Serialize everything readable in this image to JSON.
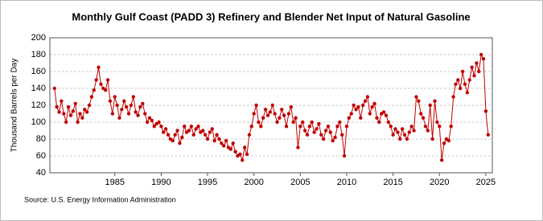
{
  "chart_data": {
    "type": "line",
    "title": "Monthly Gulf Coast (PADD 3) Refinery and Blender Net Input of Natural Gasoline",
    "y_label": "Thousand Barrels per Day",
    "source": "Source: U.S. Energy Information Administration",
    "xlim": [
      1978,
      2025.7
    ],
    "ylim": [
      40,
      200
    ],
    "xticks": [
      1985,
      1990,
      1995,
      2000,
      2005,
      2010,
      2015,
      2020,
      2025
    ],
    "yticks": [
      40,
      60,
      80,
      100,
      120,
      140,
      160,
      180,
      200
    ],
    "grid": true,
    "series": [
      {
        "color": "#c00000",
        "x": [
          1978.5,
          1978.75,
          1979,
          1979.25,
          1979.5,
          1979.75,
          1980,
          1980.25,
          1980.5,
          1980.75,
          1981,
          1981.25,
          1981.5,
          1981.75,
          1982,
          1982.25,
          1982.5,
          1982.75,
          1983,
          1983.25,
          1983.5,
          1983.75,
          1984,
          1984.25,
          1984.5,
          1984.75,
          1985,
          1985.25,
          1985.5,
          1985.75,
          1986,
          1986.25,
          1986.5,
          1986.75,
          1987,
          1987.25,
          1987.5,
          1987.75,
          1988,
          1988.25,
          1988.5,
          1988.75,
          1989,
          1989.25,
          1989.5,
          1989.75,
          1990,
          1990.25,
          1990.5,
          1990.75,
          1991,
          1991.25,
          1991.5,
          1991.75,
          1992,
          1992.25,
          1992.5,
          1992.75,
          1993,
          1993.25,
          1993.5,
          1993.75,
          1994,
          1994.25,
          1994.5,
          1994.75,
          1995,
          1995.25,
          1995.5,
          1995.75,
          1996,
          1996.25,
          1996.5,
          1996.75,
          1997,
          1997.25,
          1997.5,
          1997.75,
          1998,
          1998.25,
          1998.5,
          1998.75,
          1999,
          1999.25,
          1999.5,
          1999.75,
          2000,
          2000.25,
          2000.5,
          2000.75,
          2001,
          2001.25,
          2001.5,
          2001.75,
          2002,
          2002.25,
          2002.5,
          2002.75,
          2003,
          2003.25,
          2003.5,
          2003.75,
          2004,
          2004.25,
          2004.5,
          2004.75,
          2005,
          2005.25,
          2005.5,
          2005.75,
          2006,
          2006.25,
          2006.5,
          2006.75,
          2007,
          2007.25,
          2007.5,
          2007.75,
          2008,
          2008.25,
          2008.5,
          2008.75,
          2009,
          2009.25,
          2009.5,
          2009.75,
          2010,
          2010.25,
          2010.5,
          2010.75,
          2011,
          2011.25,
          2011.5,
          2011.75,
          2012,
          2012.25,
          2012.5,
          2012.75,
          2013,
          2013.25,
          2013.5,
          2013.75,
          2014,
          2014.25,
          2014.5,
          2014.75,
          2015,
          2015.25,
          2015.5,
          2015.75,
          2016,
          2016.25,
          2016.5,
          2016.75,
          2017,
          2017.25,
          2017.5,
          2017.75,
          2018,
          2018.25,
          2018.5,
          2018.75,
          2019,
          2019.25,
          2019.5,
          2019.75,
          2020,
          2020.25,
          2020.5,
          2020.75,
          2021,
          2021.25,
          2021.5,
          2021.75,
          2022,
          2022.25,
          2022.5,
          2022.75,
          2023,
          2023.25,
          2023.5,
          2023.75,
          2024,
          2024.25,
          2024.5,
          2024.75,
          2025,
          2025.25
        ],
        "values": [
          140,
          118,
          112,
          125,
          110,
          100,
          118,
          108,
          113,
          122,
          100,
          110,
          105,
          115,
          112,
          120,
          130,
          138,
          150,
          165,
          145,
          140,
          138,
          150,
          125,
          110,
          130,
          120,
          105,
          115,
          125,
          118,
          110,
          120,
          130,
          112,
          108,
          118,
          122,
          110,
          100,
          105,
          102,
          95,
          98,
          100,
          95,
          88,
          92,
          85,
          80,
          78,
          85,
          90,
          75,
          82,
          95,
          88,
          90,
          95,
          85,
          92,
          95,
          88,
          90,
          85,
          80,
          88,
          92,
          78,
          85,
          80,
          75,
          72,
          78,
          70,
          68,
          75,
          65,
          60,
          62,
          55,
          70,
          62,
          85,
          95,
          110,
          120,
          100,
          95,
          105,
          115,
          108,
          112,
          120,
          110,
          100,
          105,
          115,
          108,
          95,
          110,
          118,
          100,
          105,
          70,
          95,
          100,
          90,
          85,
          95,
          100,
          88,
          92,
          98,
          85,
          80,
          90,
          95,
          88,
          78,
          82,
          95,
          100,
          85,
          60,
          95,
          105,
          110,
          120,
          115,
          118,
          105,
          120,
          125,
          130,
          110,
          118,
          122,
          105,
          100,
          110,
          112,
          108,
          100,
          95,
          85,
          92,
          88,
          80,
          92,
          85,
          80,
          88,
          95,
          90,
          130,
          125,
          110,
          105,
          95,
          90,
          120,
          80,
          125,
          100,
          95,
          55,
          75,
          80,
          78,
          95,
          130,
          145,
          150,
          140,
          160,
          145,
          135,
          150,
          165,
          155,
          170,
          160,
          180,
          175,
          113,
          85
        ]
      }
    ]
  }
}
